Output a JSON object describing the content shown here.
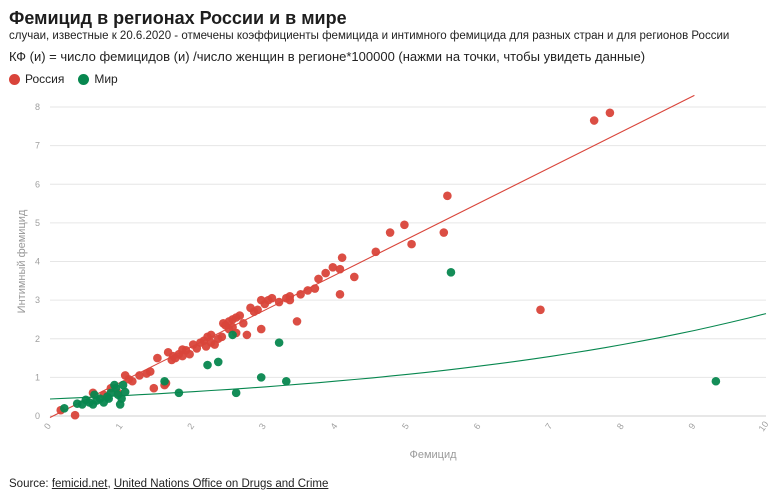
{
  "header": {
    "title": "Фемицид в регионах России и в мире",
    "subtitle": "случаи, известные к 20.6.2020 - отмечены коэффициенты фемицида и интимного фемицида для разных стран и для регионов России",
    "formula": "КФ (и) = число фемицидов (и) /число женщин в регионе*100000 (нажми на точки, чтобы увидеть данные)"
  },
  "legend": [
    {
      "label": "Россия",
      "color": "#d9443a"
    },
    {
      "label": "Мир",
      "color": "#07874f"
    }
  ],
  "source": {
    "prefix": "Source: ",
    "link1": "femicid.net",
    "separator": ", ",
    "link2": "United Nations Office on Drugs and Crime"
  },
  "chart_data": {
    "type": "scatter",
    "xlabel": "Фемицид",
    "ylabel": "Интимный фемицид",
    "xlim": [
      0,
      10
    ],
    "ylim": [
      0,
      8
    ],
    "x_ticks": [
      "0",
      "1",
      "2",
      "3",
      "4",
      "5",
      "6",
      "7",
      "8",
      "9",
      "10"
    ],
    "y_ticks": [
      "0",
      "1",
      "2",
      "3",
      "4",
      "5",
      "6",
      "7",
      "8"
    ],
    "series": [
      {
        "name": "Россия",
        "color": "#d9443a",
        "trendline": {
          "type": "linear",
          "x": [
            0,
            9
          ],
          "y": [
            -0.04,
            8.3
          ]
        },
        "points": [
          [
            0.15,
            0.15
          ],
          [
            0.35,
            0.02
          ],
          [
            0.6,
            0.6
          ],
          [
            0.75,
            0.55
          ],
          [
            0.85,
            0.72
          ],
          [
            0.95,
            0.6
          ],
          [
            1.05,
            1.05
          ],
          [
            1.1,
            0.95
          ],
          [
            1.15,
            0.9
          ],
          [
            1.25,
            1.05
          ],
          [
            1.35,
            1.1
          ],
          [
            1.4,
            1.15
          ],
          [
            1.45,
            0.72
          ],
          [
            1.5,
            1.5
          ],
          [
            1.6,
            0.8
          ],
          [
            1.62,
            0.85
          ],
          [
            1.65,
            1.65
          ],
          [
            1.7,
            1.45
          ],
          [
            1.72,
            1.55
          ],
          [
            1.75,
            1.5
          ],
          [
            1.8,
            1.6
          ],
          [
            1.85,
            1.55
          ],
          [
            1.85,
            1.72
          ],
          [
            1.9,
            1.7
          ],
          [
            1.95,
            1.6
          ],
          [
            2.0,
            1.85
          ],
          [
            2.05,
            1.75
          ],
          [
            2.1,
            1.9
          ],
          [
            2.15,
            1.95
          ],
          [
            2.18,
            1.8
          ],
          [
            2.2,
            2.05
          ],
          [
            2.25,
            1.9
          ],
          [
            2.25,
            2.1
          ],
          [
            2.3,
            1.85
          ],
          [
            2.35,
            2.0
          ],
          [
            2.4,
            2.05
          ],
          [
            2.42,
            2.4
          ],
          [
            2.45,
            2.35
          ],
          [
            2.5,
            2.45
          ],
          [
            2.5,
            2.25
          ],
          [
            2.55,
            2.5
          ],
          [
            2.55,
            2.3
          ],
          [
            2.6,
            2.55
          ],
          [
            2.6,
            2.15
          ],
          [
            2.65,
            2.6
          ],
          [
            2.7,
            2.4
          ],
          [
            2.75,
            2.1
          ],
          [
            2.8,
            2.8
          ],
          [
            2.85,
            2.7
          ],
          [
            2.9,
            2.75
          ],
          [
            2.95,
            3.0
          ],
          [
            2.95,
            2.25
          ],
          [
            3.0,
            2.9
          ],
          [
            3.05,
            3.0
          ],
          [
            3.1,
            3.05
          ],
          [
            3.2,
            2.95
          ],
          [
            3.3,
            3.05
          ],
          [
            3.35,
            3.1
          ],
          [
            3.35,
            3.0
          ],
          [
            3.45,
            2.45
          ],
          [
            3.5,
            3.15
          ],
          [
            3.6,
            3.25
          ],
          [
            3.7,
            3.3
          ],
          [
            3.75,
            3.55
          ],
          [
            3.85,
            3.7
          ],
          [
            3.95,
            3.85
          ],
          [
            4.05,
            3.8
          ],
          [
            4.05,
            3.15
          ],
          [
            4.08,
            4.1
          ],
          [
            4.25,
            3.6
          ],
          [
            4.55,
            4.25
          ],
          [
            4.75,
            4.75
          ],
          [
            4.95,
            4.95
          ],
          [
            5.05,
            4.45
          ],
          [
            5.5,
            4.75
          ],
          [
            5.55,
            5.7
          ],
          [
            6.85,
            2.75
          ],
          [
            7.6,
            7.65
          ],
          [
            7.82,
            7.85
          ]
        ]
      },
      {
        "name": "Мир",
        "color": "#07874f",
        "trendline": {
          "type": "exponential",
          "x": [
            0,
            10
          ],
          "y0": 0.44,
          "y1": 2.65
        },
        "points": [
          [
            0.2,
            0.2
          ],
          [
            0.38,
            0.32
          ],
          [
            0.45,
            0.3
          ],
          [
            0.5,
            0.42
          ],
          [
            0.55,
            0.35
          ],
          [
            0.6,
            0.3
          ],
          [
            0.62,
            0.55
          ],
          [
            0.65,
            0.4
          ],
          [
            0.7,
            0.45
          ],
          [
            0.75,
            0.35
          ],
          [
            0.8,
            0.5
          ],
          [
            0.82,
            0.45
          ],
          [
            0.85,
            0.6
          ],
          [
            0.9,
            0.8
          ],
          [
            0.92,
            0.72
          ],
          [
            0.95,
            0.55
          ],
          [
            0.98,
            0.3
          ],
          [
            1.0,
            0.45
          ],
          [
            1.02,
            0.8
          ],
          [
            1.05,
            0.62
          ],
          [
            1.6,
            0.9
          ],
          [
            1.8,
            0.6
          ],
          [
            2.2,
            1.32
          ],
          [
            2.35,
            1.4
          ],
          [
            2.55,
            2.1
          ],
          [
            2.6,
            0.6
          ],
          [
            2.95,
            1.0
          ],
          [
            3.2,
            1.9
          ],
          [
            3.3,
            0.9
          ],
          [
            5.6,
            3.72
          ],
          [
            9.3,
            0.9
          ]
        ]
      }
    ]
  }
}
